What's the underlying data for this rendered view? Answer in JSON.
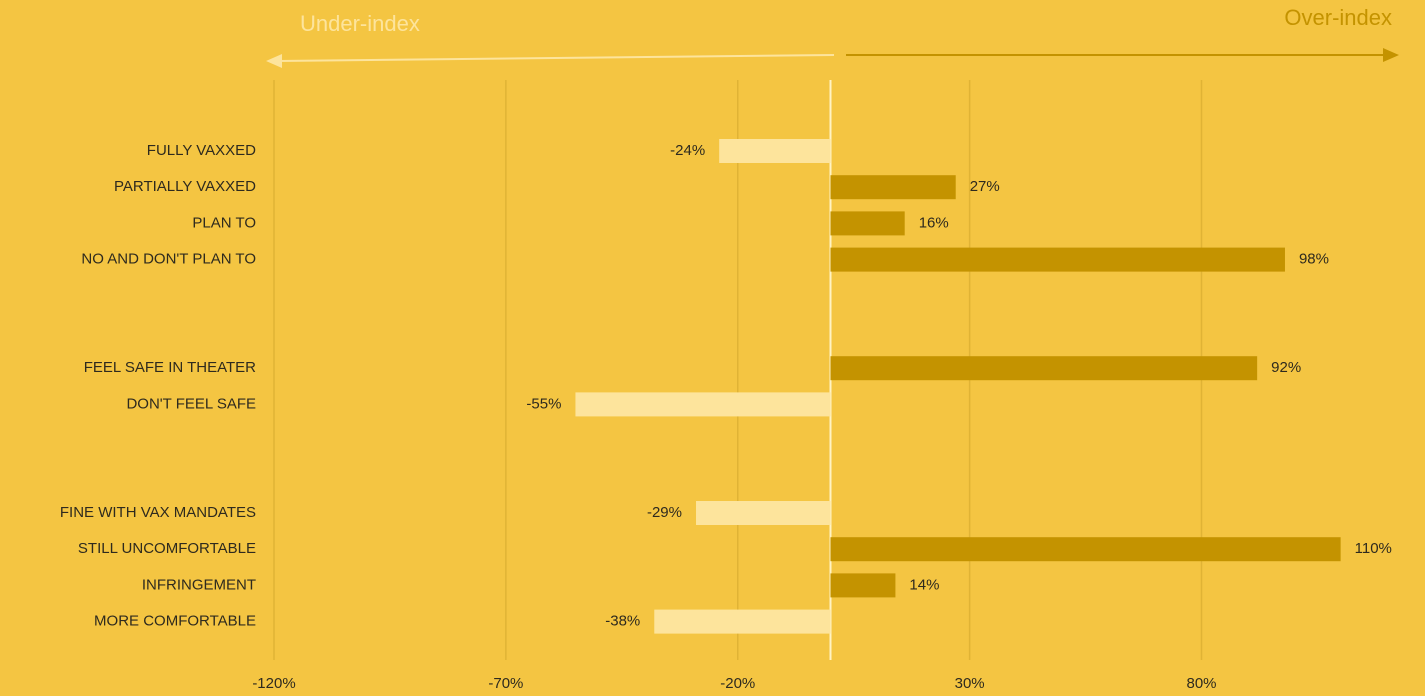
{
  "chart_data": {
    "type": "barh",
    "annotations": [
      "Under-index",
      "Over-index"
    ],
    "categories": [
      "FULLY VAXXED",
      "PARTIALLY VAXXED",
      "PLAN TO",
      "NO AND DON'T PLAN TO",
      null,
      null,
      "FEEL SAFE IN THEATER",
      "DON'T FEEL SAFE",
      null,
      null,
      "FINE WITH VAX MANDATES",
      "STILL UNCOMFORTABLE",
      "INFRINGEMENT",
      "MORE COMFORTABLE"
    ],
    "values": [
      -24,
      27,
      16,
      98,
      null,
      null,
      92,
      -55,
      null,
      null,
      -29,
      110,
      14,
      -38
    ],
    "value_labels": [
      "-24%",
      "27%",
      "16%",
      "98%",
      null,
      null,
      "92%",
      "-55%",
      null,
      null,
      "-29%",
      "110%",
      "14%",
      "-38%"
    ],
    "colors": {
      "positive": "#c49300",
      "negative": "#fde49c"
    },
    "xlim": [
      -120,
      120
    ],
    "xticks": [
      {
        "value": -120,
        "label": "-120%"
      },
      {
        "value": -70,
        "label": "-70%"
      },
      {
        "value": -20,
        "label": "-20%"
      },
      {
        "value": 30,
        "label": "30%"
      },
      {
        "value": 80,
        "label": "80%"
      }
    ],
    "grid": true
  }
}
